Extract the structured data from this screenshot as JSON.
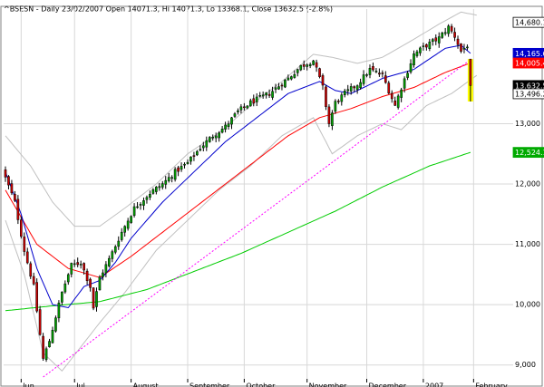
{
  "chart_data": {
    "type": "candlestick",
    "title": "^BSESN - Daily 23/02/2007 Open 14071.3, Hi 14071.3, Lo 13368.1, Close 13632.5 (-2.8%)",
    "x_tick_labels": [
      "Jun",
      "Jul",
      "August",
      "September",
      "October",
      "November",
      "December",
      "2007",
      "February"
    ],
    "x_tick_days": [
      5,
      22,
      40,
      58,
      76,
      96,
      115,
      133,
      149
    ],
    "y_tick_labels": [
      "9,000",
      "10,000",
      "11,000",
      "12,000",
      "13,000"
    ],
    "y_ticks": [
      9000,
      10000,
      11000,
      12000,
      13000
    ],
    "ylim": [
      8800,
      14900
    ],
    "n_days": 160,
    "price_badges": [
      {
        "text": "14,680.1",
        "value": 14680.1,
        "kind": "outline",
        "color": "#000000"
      },
      {
        "text": "14,165.6",
        "value": 14165.6,
        "kind": "fill",
        "color": "#0000cc"
      },
      {
        "text": "14,005.4",
        "value": 14005.4,
        "kind": "fill",
        "color": "#ff0000"
      },
      {
        "text": "13,632.5",
        "value": 13632.5,
        "kind": "fill",
        "color": "#000000"
      },
      {
        "text": "13,496.2",
        "value": 13496.2,
        "kind": "outline",
        "color": "#000000"
      },
      {
        "text": "12,524.1",
        "value": 12524.1,
        "kind": "fill",
        "color": "#00aa00"
      }
    ],
    "colors": {
      "up": "#00a000",
      "down": "#cc0000",
      "ma_fast": "#0000cc",
      "ma_mid": "#ff0000",
      "ma_slow": "#00cc00",
      "bands": "#c0c0c0",
      "trend": "#ff00ff",
      "highlight": "#ffff00"
    },
    "close_anchors": [
      [
        0,
        12100
      ],
      [
        3,
        11700
      ],
      [
        6,
        10900
      ],
      [
        9,
        10300
      ],
      [
        12,
        9100
      ],
      [
        14,
        9400
      ],
      [
        16,
        9800
      ],
      [
        18,
        10200
      ],
      [
        21,
        10650
      ],
      [
        24,
        10700
      ],
      [
        27,
        10300
      ],
      [
        28,
        9950
      ],
      [
        30,
        10450
      ],
      [
        33,
        10750
      ],
      [
        37,
        11200
      ],
      [
        41,
        11600
      ],
      [
        46,
        11850
      ],
      [
        50,
        12000
      ],
      [
        54,
        12200
      ],
      [
        58,
        12350
      ],
      [
        62,
        12600
      ],
      [
        66,
        12800
      ],
      [
        70,
        12950
      ],
      [
        74,
        13200
      ],
      [
        78,
        13350
      ],
      [
        84,
        13500
      ],
      [
        90,
        13750
      ],
      [
        94,
        13950
      ],
      [
        98,
        14050
      ],
      [
        101,
        13600
      ],
      [
        103,
        13000
      ],
      [
        105,
        13350
      ],
      [
        108,
        13500
      ],
      [
        112,
        13650
      ],
      [
        116,
        13900
      ],
      [
        120,
        13800
      ],
      [
        124,
        13300
      ],
      [
        126,
        13600
      ],
      [
        130,
        14150
      ],
      [
        134,
        14300
      ],
      [
        138,
        14420
      ],
      [
        141,
        14600
      ],
      [
        143,
        14450
      ],
      [
        145,
        14200
      ],
      [
        147,
        14300
      ],
      [
        148,
        13632.5
      ]
    ],
    "ma_fast_anchors": [
      [
        0,
        12200
      ],
      [
        5,
        11500
      ],
      [
        10,
        10600
      ],
      [
        15,
        10000
      ],
      [
        20,
        9950
      ],
      [
        25,
        10300
      ],
      [
        30,
        10400
      ],
      [
        35,
        10700
      ],
      [
        40,
        11100
      ],
      [
        50,
        11700
      ],
      [
        60,
        12200
      ],
      [
        70,
        12700
      ],
      [
        80,
        13100
      ],
      [
        90,
        13500
      ],
      [
        100,
        13700
      ],
      [
        105,
        13550
      ],
      [
        110,
        13500
      ],
      [
        120,
        13750
      ],
      [
        130,
        13900
      ],
      [
        140,
        14250
      ],
      [
        145,
        14300
      ],
      [
        148,
        14165.6
      ]
    ],
    "ma_mid_anchors": [
      [
        0,
        11900
      ],
      [
        10,
        11000
      ],
      [
        20,
        10600
      ],
      [
        30,
        10450
      ],
      [
        40,
        10800
      ],
      [
        50,
        11200
      ],
      [
        60,
        11600
      ],
      [
        70,
        12000
      ],
      [
        80,
        12400
      ],
      [
        90,
        12800
      ],
      [
        100,
        13100
      ],
      [
        110,
        13250
      ],
      [
        120,
        13450
      ],
      [
        130,
        13600
      ],
      [
        140,
        13850
      ],
      [
        148,
        14005.4
      ]
    ],
    "ma_slow_anchors": [
      [
        0,
        9900
      ],
      [
        15,
        9980
      ],
      [
        30,
        10050
      ],
      [
        45,
        10250
      ],
      [
        60,
        10550
      ],
      [
        75,
        10850
      ],
      [
        90,
        11200
      ],
      [
        105,
        11550
      ],
      [
        120,
        11950
      ],
      [
        135,
        12300
      ],
      [
        148,
        12524.1
      ]
    ],
    "band_upper_anchors": [
      [
        0,
        12800
      ],
      [
        8,
        12300
      ],
      [
        15,
        11700
      ],
      [
        22,
        11300
      ],
      [
        30,
        11300
      ],
      [
        38,
        11600
      ],
      [
        48,
        12000
      ],
      [
        58,
        12500
      ],
      [
        68,
        12850
      ],
      [
        78,
        13300
      ],
      [
        88,
        13700
      ],
      [
        98,
        14150
      ],
      [
        104,
        14100
      ],
      [
        112,
        14000
      ],
      [
        120,
        14100
      ],
      [
        130,
        14400
      ],
      [
        138,
        14650
      ],
      [
        145,
        14850
      ],
      [
        150,
        14800
      ]
    ],
    "band_lower_anchors": [
      [
        0,
        11400
      ],
      [
        6,
        10500
      ],
      [
        12,
        9200
      ],
      [
        18,
        8900
      ],
      [
        24,
        9300
      ],
      [
        30,
        9700
      ],
      [
        38,
        10200
      ],
      [
        48,
        10900
      ],
      [
        58,
        11400
      ],
      [
        68,
        11900
      ],
      [
        78,
        12300
      ],
      [
        88,
        12800
      ],
      [
        98,
        13100
      ],
      [
        104,
        12500
      ],
      [
        112,
        12800
      ],
      [
        120,
        13000
      ],
      [
        126,
        12900
      ],
      [
        134,
        13300
      ],
      [
        142,
        13500
      ],
      [
        150,
        13800
      ]
    ],
    "trendline": {
      "x0": 12,
      "y0": 8800,
      "x1": 148,
      "y1": 14060
    }
  }
}
